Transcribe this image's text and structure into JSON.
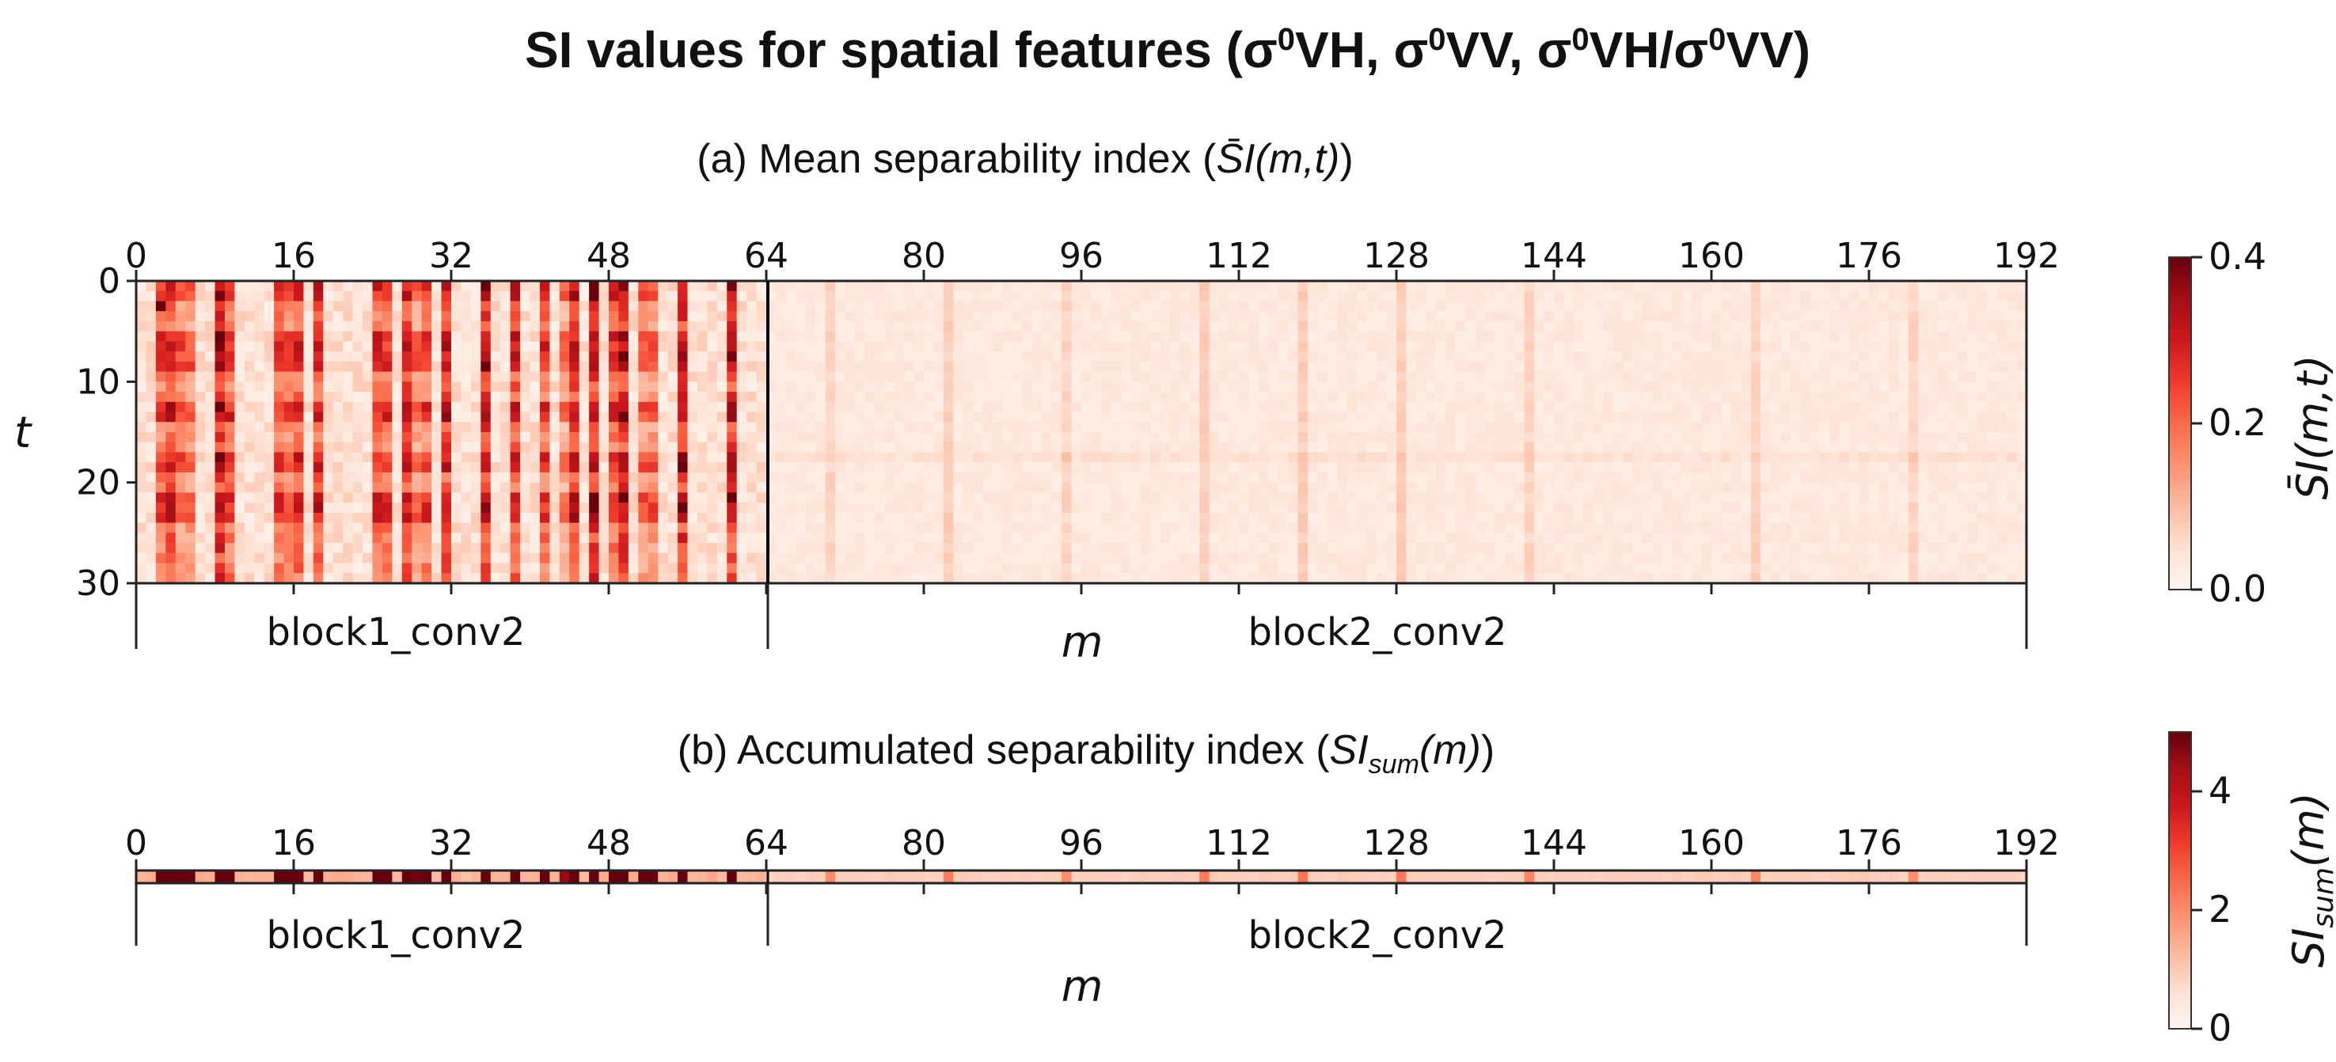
{
  "figure": {
    "title": "SI values for spatial features (σ⁰VH, σ⁰VV, σ⁰VH/σ⁰VV)",
    "title_parts": {
      "t1": "SI values for spatial features (σ",
      "sup": "0",
      "vh": "VH, σ",
      "vv": "VV, σ",
      "vhslash": "VH/σ",
      "end": "VV)"
    }
  },
  "chart_data": [
    {
      "id": "a",
      "type": "heatmap",
      "title": "(a) Mean separability index (S̄I(m,t))",
      "title_prefix": "(a) Mean separability index (",
      "title_symbol": "S̄I(m,t)",
      "title_suffix": ")",
      "xlabel": "m",
      "ylabel": "t",
      "x_range": [
        0,
        192
      ],
      "y_range": [
        0,
        30
      ],
      "n_cols": 192,
      "n_rows": 30,
      "xticks": [
        "0",
        "16",
        "32",
        "48",
        "64",
        "80",
        "96",
        "112",
        "128",
        "144",
        "160",
        "176",
        "192"
      ],
      "yticks": [
        "0",
        "10",
        "20",
        "30"
      ],
      "block_labels": [
        "block1_conv2",
        "block2_conv2"
      ],
      "block_boundaries": [
        0,
        64,
        192
      ],
      "colormap": "Reds",
      "colorbar": {
        "label": "S̄I(m,t)",
        "range": [
          0,
          0.4
        ],
        "ticks": [
          "0.0",
          "0.2",
          "0.4"
        ]
      },
      "hot_columns_block1": [
        2,
        3,
        4,
        5,
        8,
        9,
        14,
        15,
        16,
        18,
        24,
        25,
        27,
        28,
        29,
        31,
        35,
        38,
        41,
        43,
        44,
        46,
        48,
        49,
        51,
        52,
        55,
        60
      ],
      "hot_columns_block2": [
        70,
        82,
        94,
        108,
        118,
        128,
        141,
        164,
        180
      ]
    },
    {
      "id": "b",
      "type": "heatmap",
      "title": "(b) Accumulated separability index (SI_sum(m))",
      "title_prefix": "(b) Accumulated separability index (",
      "title_symbol": "SI",
      "title_sub": "sum",
      "title_symbol2": "(m)",
      "title_suffix": ")",
      "xlabel": "m",
      "x_range": [
        0,
        192
      ],
      "n_cols": 192,
      "n_rows": 1,
      "xticks": [
        "0",
        "16",
        "32",
        "48",
        "64",
        "80",
        "96",
        "112",
        "128",
        "144",
        "160",
        "176",
        "192"
      ],
      "block_labels": [
        "block1_conv2",
        "block2_conv2"
      ],
      "colormap": "Reds",
      "colorbar": {
        "label": "SI_sum(m)",
        "label_main": "SI",
        "label_sub": "sum",
        "label_end": "(m)",
        "range": [
          0,
          5
        ],
        "ticks": [
          "0",
          "2",
          "4"
        ]
      }
    }
  ]
}
